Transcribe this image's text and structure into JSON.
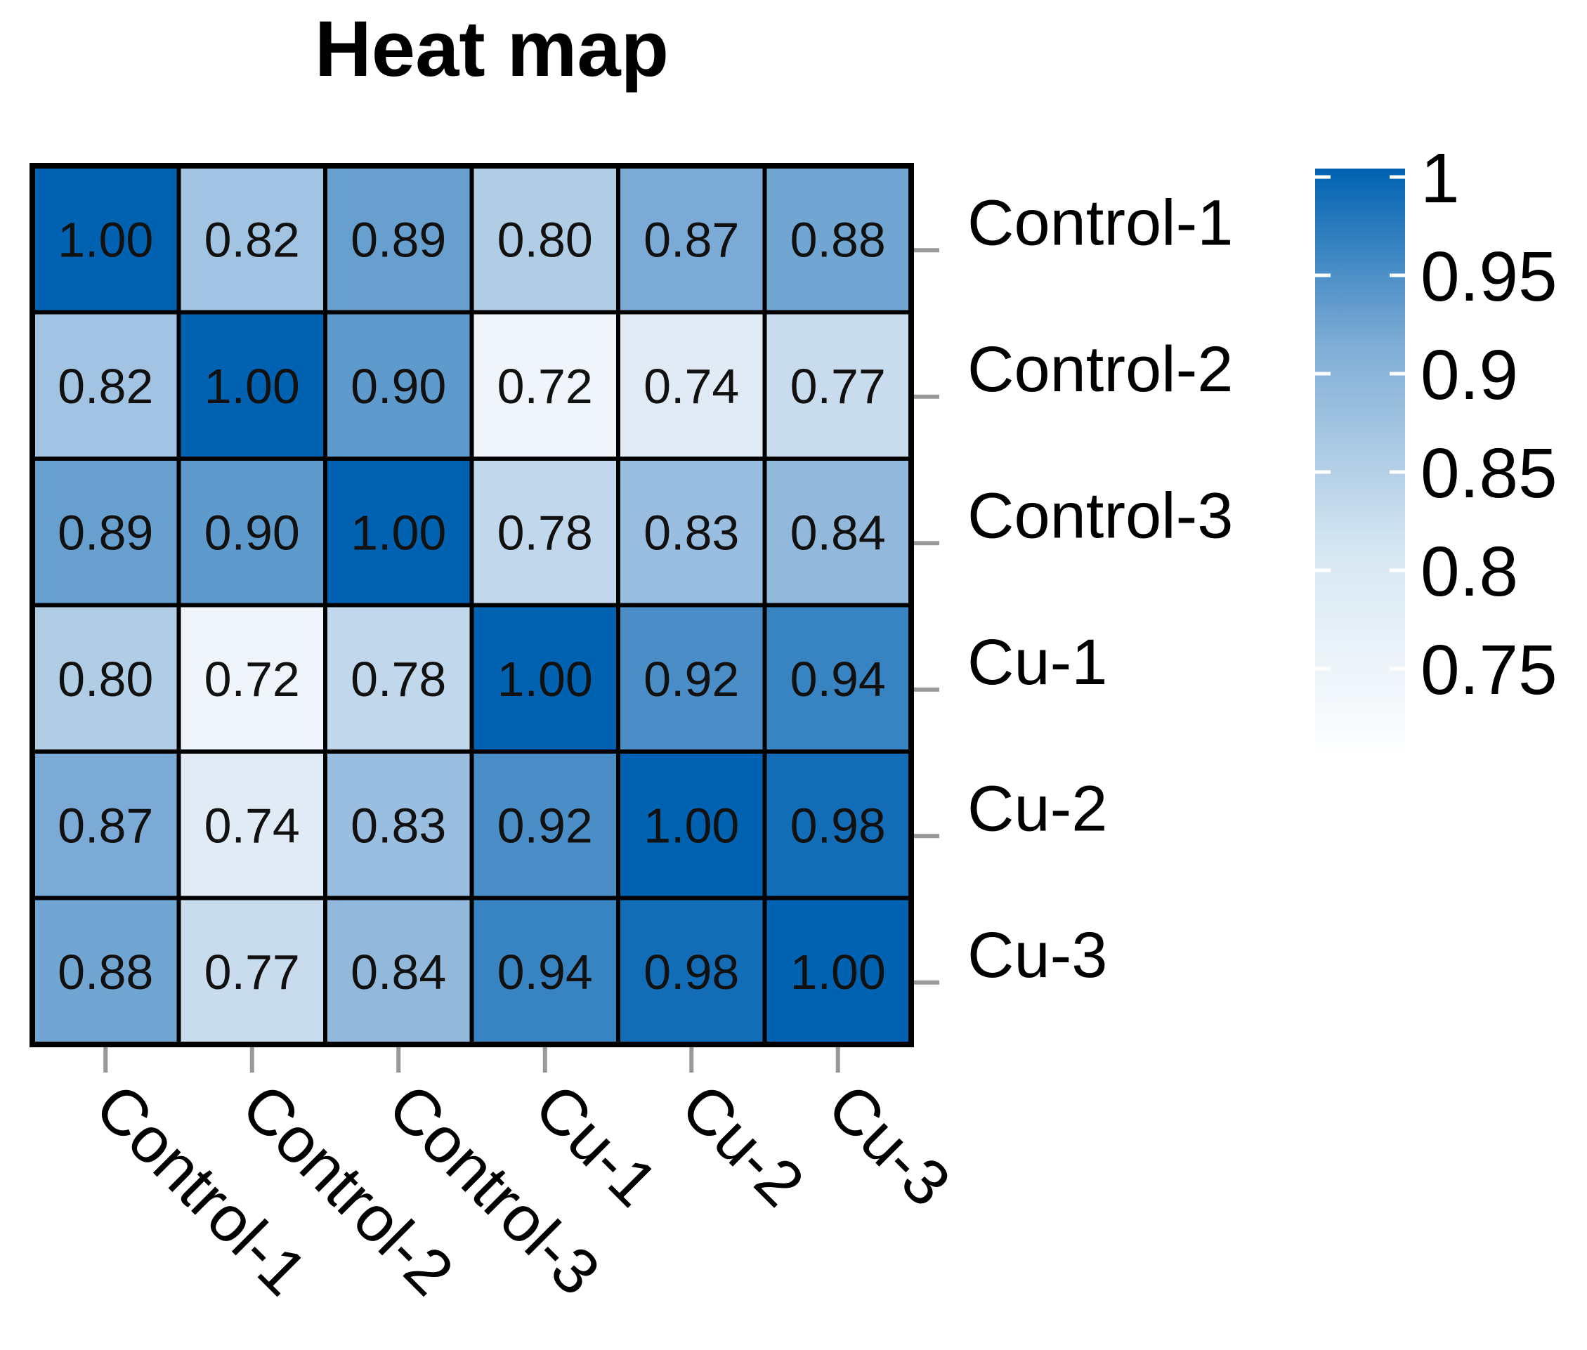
{
  "chart_data": {
    "type": "heatmap",
    "title": "Heat map",
    "rows": [
      "Control-1",
      "Control-2",
      "Control-3",
      "Cu-1",
      "Cu-2",
      "Cu-3"
    ],
    "columns": [
      "Control-1",
      "Control-2",
      "Control-3",
      "Cu-1",
      "Cu-2",
      "Cu-3"
    ],
    "values": [
      [
        1.0,
        0.82,
        0.89,
        0.8,
        0.87,
        0.88
      ],
      [
        0.82,
        1.0,
        0.9,
        0.72,
        0.74,
        0.77
      ],
      [
        0.89,
        0.9,
        1.0,
        0.78,
        0.83,
        0.84
      ],
      [
        0.8,
        0.72,
        0.78,
        1.0,
        0.92,
        0.94
      ],
      [
        0.87,
        0.74,
        0.83,
        0.92,
        1.0,
        0.98
      ],
      [
        0.88,
        0.77,
        0.84,
        0.94,
        0.98,
        1.0
      ]
    ],
    "value_labels": [
      [
        "1.00",
        "0.82",
        "0.89",
        "0.80",
        "0.87",
        "0.88"
      ],
      [
        "0.82",
        "1.00",
        "0.90",
        "0.72",
        "0.74",
        "0.77"
      ],
      [
        "0.89",
        "0.90",
        "1.00",
        "0.78",
        "0.83",
        "0.84"
      ],
      [
        "0.80",
        "0.72",
        "0.78",
        "1.00",
        "0.92",
        "0.94"
      ],
      [
        "0.87",
        "0.74",
        "0.83",
        "0.92",
        "1.00",
        "0.98"
      ],
      [
        "0.88",
        "0.77",
        "0.84",
        "0.94",
        "0.98",
        "1.00"
      ]
    ],
    "colorbar": {
      "min": 0.7,
      "max": 1.0,
      "ticks": [
        1,
        0.95,
        0.9,
        0.85,
        0.8,
        0.75
      ],
      "tick_labels": [
        "1",
        "0.95",
        "0.9",
        "0.85",
        "0.8",
        "0.75"
      ],
      "low_color": "#ffffff",
      "mid_color": "#7fadd6",
      "high_color": "#0062b1"
    },
    "row_label_position": "right",
    "column_label_position": "bottom"
  }
}
